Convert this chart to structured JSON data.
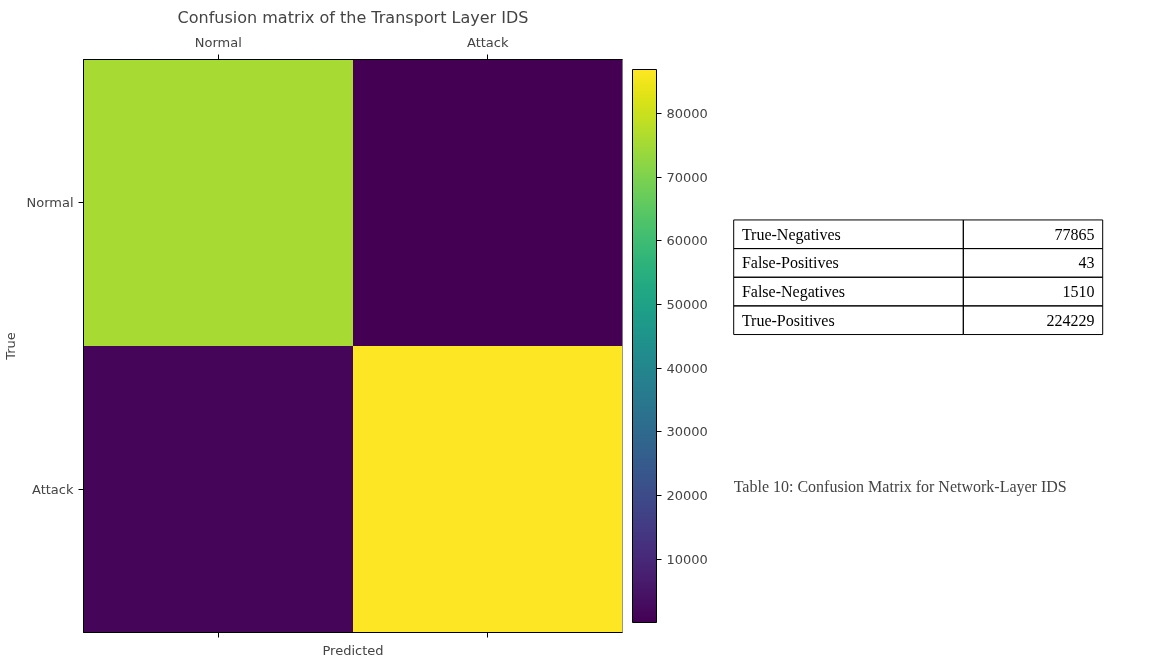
{
  "chart_data": [
    {
      "type": "heatmap",
      "title": "Confusion matrix of the Transport Layer IDS",
      "xlabel": "Predicted",
      "ylabel": "True",
      "categories": [
        "Normal",
        "Attack"
      ],
      "y_categories": [
        "Normal",
        "Attack"
      ],
      "cells": [
        [
          75600,
          43
        ],
        [
          1500,
          86900
        ]
      ],
      "clim": [
        43,
        86900
      ],
      "cticks": [
        10000,
        20000,
        30000,
        40000,
        50000,
        60000,
        70000,
        80000
      ],
      "grid": false
    },
    {
      "type": "other",
      "categories": [
        "True-Negatives",
        "False-Positives",
        "False-Negatives",
        "True-Positives"
      ],
      "values": [
        77865,
        43,
        1510,
        224229
      ],
      "data_labels": true,
      "annotations": [
        "Table 10: Confusion Matrix for Network-Layer IDS"
      ]
    }
  ]
}
